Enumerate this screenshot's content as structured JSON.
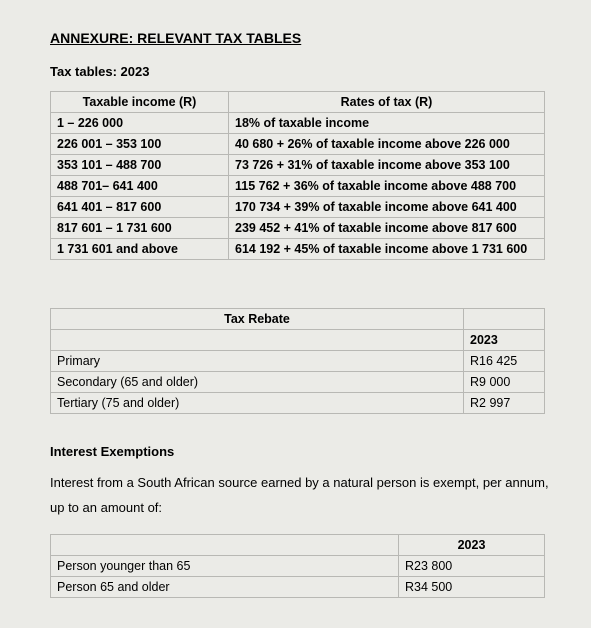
{
  "title": "ANNEXURE: RELEVANT TAX TABLES",
  "tax_tables_label": "Tax tables: 2023",
  "tax_table": {
    "col1": "Taxable income (R)",
    "col2": "Rates of tax (R)",
    "rows": [
      {
        "bracket": "1 – 226 000",
        "rate": "18% of taxable income"
      },
      {
        "bracket": "226 001 – 353 100",
        "rate": "40 680 + 26% of taxable income above 226 000"
      },
      {
        "bracket": "353 101 – 488 700",
        "rate": "73 726 + 31% of taxable income above 353 100"
      },
      {
        "bracket": "488 701– 641 400",
        "rate": "115 762 + 36% of taxable income above 488 700"
      },
      {
        "bracket": "641 401 – 817 600",
        "rate": "170 734 + 39% of taxable income above 641 400"
      },
      {
        "bracket": "817 601 – 1 731 600",
        "rate": "239 452  + 41% of taxable income above 817 600"
      },
      {
        "bracket": "1 731 601 and above",
        "rate": "614 192 + 45% of taxable income above 1 731 600"
      }
    ]
  },
  "rebate": {
    "header": "Tax Rebate",
    "year": "2023",
    "rows": [
      {
        "label": "Primary",
        "amount": "R16 425"
      },
      {
        "label": "Secondary (65 and older)",
        "amount": "R9 000"
      },
      {
        "label": "Tertiary (75 and older)",
        "amount": "R2 997"
      }
    ]
  },
  "interest": {
    "heading": "Interest Exemptions",
    "text": "Interest from a South African source earned by a natural person is exempt, per annum, up to an amount of:",
    "year": "2023",
    "rows": [
      {
        "label": "Person younger than 65",
        "amount": "R23 800"
      },
      {
        "label": "Person 65 and older",
        "amount": "R34 500"
      }
    ]
  }
}
